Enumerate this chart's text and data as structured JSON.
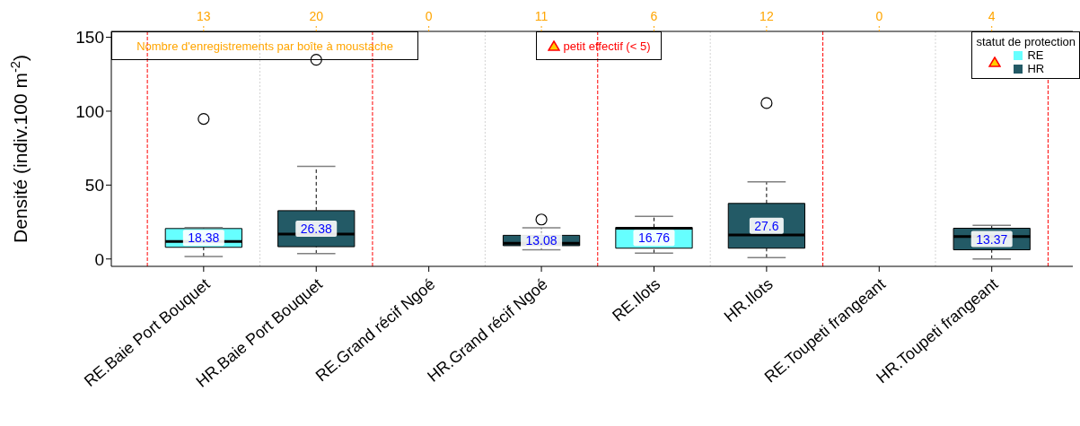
{
  "chart_data": {
    "type": "box",
    "ylabel": "Densité  (indiv.100 m$^{-2}$)",
    "legend_title": "statut de protection",
    "legend": "top right",
    "categories": [
      "RE.Baie Port Bouquet",
      "HR.Baie Port Bouquet",
      "RE.Grand récif Ngoé",
      "HR.Grand récif Ngoé",
      "RE.Ilots",
      "HR.Ilots",
      "RE.Toupeti frangeant",
      "HR.Toupeti frangeant"
    ],
    "ylim": [
      -5,
      154
    ],
    "yticks": [
      0,
      50,
      100,
      150
    ],
    "series": [
      {
        "name": "RE",
        "color": "#66ffff",
        "boxes": [
          {
            "low": 1.6,
            "q1": 7.9,
            "median": 11.9,
            "q3": 20.6,
            "high": 21.2,
            "outliers": [
              94.8
            ]
          },
          null,
          null,
          null,
          {
            "low": 3.9,
            "q1": 7.3,
            "median": 20.8,
            "q3": 21.3,
            "high": 28.9
          },
          null,
          null,
          null
        ]
      },
      {
        "name": "HR",
        "color": "#235a66",
        "boxes": [
          null,
          {
            "low": 3.6,
            "q1": 8.3,
            "median": 16.8,
            "q3": 32.7,
            "high": 62.6,
            "outliers": [
              134.8
            ]
          },
          null,
          {
            "low": 6.2,
            "q1": 9.0,
            "median": 10.7,
            "q3": 16.0,
            "high": 21.1,
            "outliers": [
              26.7
            ]
          },
          null,
          {
            "low": 0.9,
            "q1": 7.3,
            "median": 16.3,
            "q3": 37.6,
            "high": 52.2,
            "outliers": [
              105.5
            ]
          },
          null,
          {
            "low": 0,
            "q1": 6.2,
            "median": 15.2,
            "q3": 20.8,
            "high": 22.7
          }
        ]
      }
    ],
    "annotations": [
      "Nombre d'enregistrements par boîte à moustache",
      "petit effectif (< 5)",
      "13",
      "20",
      "0",
      "11",
      "6",
      "12",
      "0",
      "4",
      "18.38",
      "26.38",
      "13.08",
      "16.76",
      "27.6",
      "13.37"
    ]
  }
}
